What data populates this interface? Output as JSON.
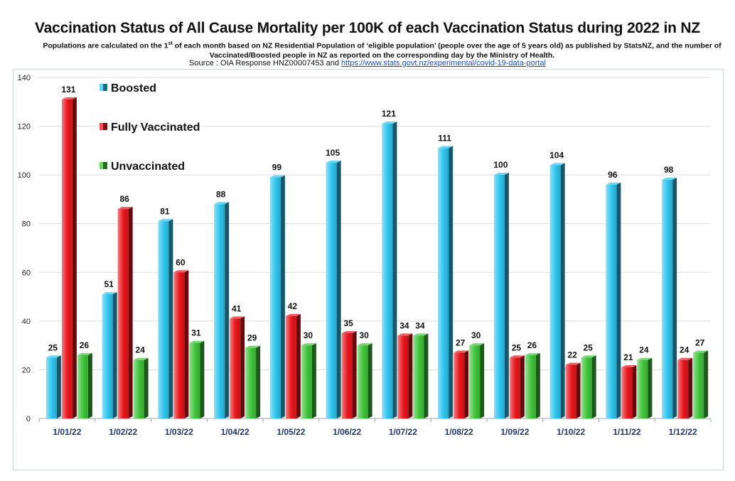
{
  "header": {
    "title": "Vaccination Status of All Cause Mortality per 100K of each Vaccination Status during 2022 in NZ",
    "subtitle_line1_pre": "Populations are calculated on the 1",
    "subtitle_line1_sup": "st",
    "subtitle_line1_post": " of each month based on NZ Residential Population of ‘eligible population’ (people over the age of 5 years old) as published by StatsNZ, and the number of",
    "subtitle_line2": "Vaccinated/Boosted people in NZ as reported on the corresponding day by the Ministry of Health.",
    "source_text": "Source : OIA Response HNZ00007453 and ",
    "source_link": "https://www.stats.govt.nz/experimental/covid-19-data-portal"
  },
  "chart_data": {
    "type": "bar",
    "categories": [
      "1/01/22",
      "1/02/22",
      "1/03/22",
      "1/04/22",
      "1/05/22",
      "1/06/22",
      "1/07/22",
      "1/08/22",
      "1/09/22",
      "1/10/22",
      "1/11/22",
      "1/12/22"
    ],
    "series": [
      {
        "name": "Boosted",
        "color": "#2ec4ee",
        "values": [
          25,
          51,
          81,
          88,
          99,
          105,
          121,
          111,
          100,
          104,
          96,
          98
        ]
      },
      {
        "name": "Fully Vaccinated",
        "color": "#e8161c",
        "values": [
          131,
          86,
          60,
          41,
          42,
          35,
          34,
          27,
          25,
          22,
          21,
          24
        ]
      },
      {
        "name": "Unvaccinated",
        "color": "#3fc43a",
        "values": [
          26,
          24,
          31,
          29,
          30,
          30,
          34,
          30,
          26,
          25,
          24,
          27
        ]
      }
    ],
    "ylim": [
      0,
      140
    ],
    "yticks": [
      0,
      20,
      40,
      60,
      80,
      100,
      120,
      140
    ],
    "grid": true,
    "legend_position": "top-left",
    "data_labels": true,
    "title": "",
    "xlabel": "",
    "ylabel": ""
  }
}
